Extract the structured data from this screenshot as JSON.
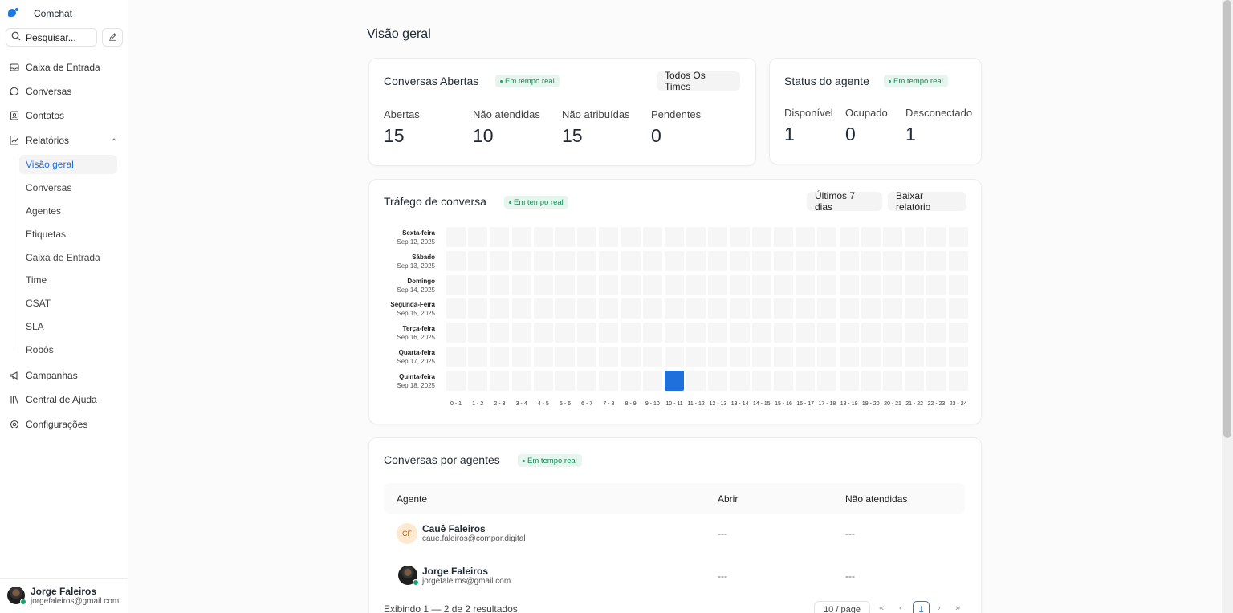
{
  "app": {
    "name": "Comchat"
  },
  "sidebar": {
    "search_label": "Pesquisar...",
    "items": [
      {
        "label": "Caixa de Entrada",
        "icon": "inbox-icon"
      },
      {
        "label": "Conversas",
        "icon": "chat-icon"
      },
      {
        "label": "Contatos",
        "icon": "contacts-icon"
      },
      {
        "label": "Relatórios",
        "icon": "chart-icon"
      },
      {
        "label": "Campanhas",
        "icon": "megaphone-icon"
      },
      {
        "label": "Central de Ajuda",
        "icon": "library-icon"
      },
      {
        "label": "Configurações",
        "icon": "gear-icon"
      }
    ],
    "report_items": [
      "Visão geral",
      "Conversas",
      "Agentes",
      "Etiquetas",
      "Caixa de Entrada",
      "Time",
      "CSAT",
      "SLA",
      "Robôs"
    ],
    "user": {
      "name": "Jorge Faleiros",
      "email": "jorgefaleiros@gmail.com"
    }
  },
  "page": {
    "title": "Visão geral"
  },
  "open_conversations": {
    "title": "Conversas Abertas",
    "badge": "Em tempo real",
    "filter": "Todos Os Times",
    "metrics": [
      {
        "label": "Abertas",
        "value": "15"
      },
      {
        "label": "Não atendidas",
        "value": "10"
      },
      {
        "label": "Não atribuídas",
        "value": "15"
      },
      {
        "label": "Pendentes",
        "value": "0"
      }
    ]
  },
  "agent_status": {
    "title": "Status do agente",
    "badge": "Em tempo real",
    "metrics": [
      {
        "label": "Disponível",
        "value": "1"
      },
      {
        "label": "Ocupado",
        "value": "0"
      },
      {
        "label": "Desconectado",
        "value": "1"
      }
    ]
  },
  "traffic": {
    "title": "Tráfego de conversa",
    "badge": "Em tempo real",
    "range_button": "Últimos 7 dias",
    "download_button": "Baixar relatório",
    "days": [
      {
        "day": "Sexta-feira",
        "date": "Sep 12, 2025"
      },
      {
        "day": "Sábado",
        "date": "Sep 13, 2025"
      },
      {
        "day": "Domingo",
        "date": "Sep 14, 2025"
      },
      {
        "day": "Segunda-Feira",
        "date": "Sep 15, 2025"
      },
      {
        "day": "Terça-feira",
        "date": "Sep 16, 2025"
      },
      {
        "day": "Quarta-feira",
        "date": "Sep 17, 2025"
      },
      {
        "day": "Quinta-feira",
        "date": "Sep 18, 2025"
      }
    ],
    "hours": [
      "0 - 1",
      "1 - 2",
      "2 - 3",
      "3 - 4",
      "4 - 5",
      "5 - 6",
      "6 - 7",
      "7 - 8",
      "8 - 9",
      "9 - 10",
      "10 - 11",
      "11 - 12",
      "12 - 13",
      "13 - 14",
      "14 - 15",
      "15 - 16",
      "16 - 17",
      "17 - 18",
      "18 - 19",
      "19 - 20",
      "20 - 21",
      "21 - 22",
      "22 - 23",
      "23 - 24"
    ],
    "active_cells": [
      {
        "day_index": 6,
        "hour_index": 10
      }
    ],
    "colors": {
      "empty": "#f6f6f7",
      "active": "#1f6fdd"
    }
  },
  "agents_table": {
    "title": "Conversas por agentes",
    "badge": "Em tempo real",
    "columns": [
      "Agente",
      "Abrir",
      "Não atendidas"
    ],
    "rows": [
      {
        "initials": "CF",
        "name": "Cauê Faleiros",
        "email": "caue.faleiros@compor.digital",
        "open": "---",
        "unattended": "---"
      },
      {
        "initials": "",
        "name": "Jorge Faleiros",
        "email": "jorgefaleiros@gmail.com",
        "open": "---",
        "unattended": "---"
      }
    ],
    "footer": "Exibindo 1 — 2 de 2 resultados",
    "page_size": "10 / page",
    "current_page": "1"
  }
}
